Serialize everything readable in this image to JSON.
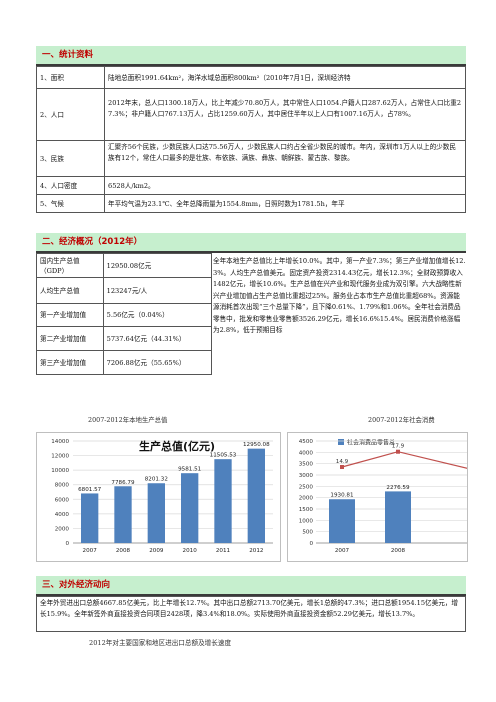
{
  "section1": {
    "title": "一、统计资料",
    "rows": [
      {
        "label": "1、面积",
        "text": "陆地总面积1991.64km²，海洋水域总面积800km²（2010年7月1日，深圳经济特"
      },
      {
        "label": "2、人口",
        "text": "2012年末，总人口1300.18万人，比上年减少70.80万人，其中常住人口1054.户籍人口287.62万人，占常住人口比重27.3%；非户籍人口767.13万人，占比1259.60万人，其中居住半年以上人口有1007.16万人，占78%。"
      },
      {
        "label": "3、民族",
        "text": "汇聚齐56个民族，少数民族人口达75.56万人，少数民族人口约占全省少数民的城市。年内，深圳市1万人以上的少数民族有12个，常住人口最多的是壮族、布依族、满族、彝族、朝鲜族、蒙古族、黎族。"
      },
      {
        "label": "4、人口密度",
        "text": "6528人/km2。"
      },
      {
        "label": "5、气候",
        "text": "年平均气温为23.1℃、全年总降雨量为1554.8mm，日照时数为1781.5h，年平"
      }
    ]
  },
  "section2": {
    "title": "二、经济概况（2012年）",
    "rows": [
      {
        "label": "国内生产总值（GDP）",
        "value": "12950.08亿元"
      },
      {
        "label": "人均生产总值",
        "value": "123247元/人"
      },
      {
        "label": "第一产业增加值",
        "value": "5.56亿元（0.04%）"
      },
      {
        "label": "第二产业增加值",
        "value": "5737.64亿元（44.31%）"
      },
      {
        "label": "第三产业增加值",
        "value": "7206.88亿元（55.65%）"
      }
    ],
    "paragraph": "全年本地生产总值比上年增长10.0%。其中，第一产业7.3%；第三产业增加值增长12.3%。人均生产总值美元。固定资产投资2314.43亿元，增长12.3%；全财政预算收入1482亿元，增长10.6%。生产总值在兴产业和现代服务业成为双引擎。六大战略性新兴产业增加值占生产总值比重超过25%。服务业占本市生产总值比重超68%。资源能源消耗首次出现“三个总量下降”，且下降0.61%、1.79%和1.06%。全年社会消费品零售中，批发和零售业零售额3526.29亿元，增长16.6%15.4%。居民消费价格涨幅为2.8%，低于预期目标"
  },
  "chart_gdp": {
    "caption": "2007-2012年本地生产总值",
    "chart_data": {
      "type": "bar",
      "title": "生产总值(亿元)",
      "categories": [
        "2007",
        "2008",
        "2009",
        "2010",
        "2011",
        "2012"
      ],
      "values": [
        6801.57,
        7786.79,
        8201.32,
        9581.51,
        11505.53,
        12950.08
      ],
      "data_labels": [
        "6801.57",
        "7786.79",
        "8201.32",
        "9581.51",
        "11505.53",
        "12950.08"
      ],
      "ylim": [
        0,
        14000
      ],
      "yticks": [
        "0",
        "2000",
        "4000",
        "6000",
        "8000",
        "10000",
        "12000",
        "14000"
      ],
      "color": "#4f81bd",
      "grid": true
    }
  },
  "chart_retail": {
    "caption": "2007-2012年社会消费",
    "chart_data": {
      "type": "bar",
      "legend": "社会消费品零售总",
      "categories": [
        "2007",
        "2008"
      ],
      "values": [
        1930.81,
        2276.59
      ],
      "data_labels": [
        "1930.81",
        "2276.59"
      ],
      "line_labels": [
        "14.9",
        "17.9"
      ],
      "ylim": [
        0,
        4500
      ],
      "yticks": [
        "0",
        "500",
        "1000",
        "1500",
        "2000",
        "2500",
        "3000",
        "3500",
        "4000",
        "4500"
      ],
      "bar_color": "#4f81bd",
      "line_color": "#c0504d",
      "grid": true
    }
  },
  "section3": {
    "title": "三、对外经济动向",
    "paragraph": "全年外贸进出口总额4667.85亿美元，比上年增长12.7%。其中出口总额2713.70亿美元，增长1总额的47.3%；进口总额1954.15亿美元，增长15.9%。全年新签外商直接投资合同项目2428项，降3.4%和18.0%。实际使用外商直接投资金额52.29亿美元，增长13.7%。",
    "caption": "2012年对主要国家和地区进出口总额及增长速度"
  }
}
